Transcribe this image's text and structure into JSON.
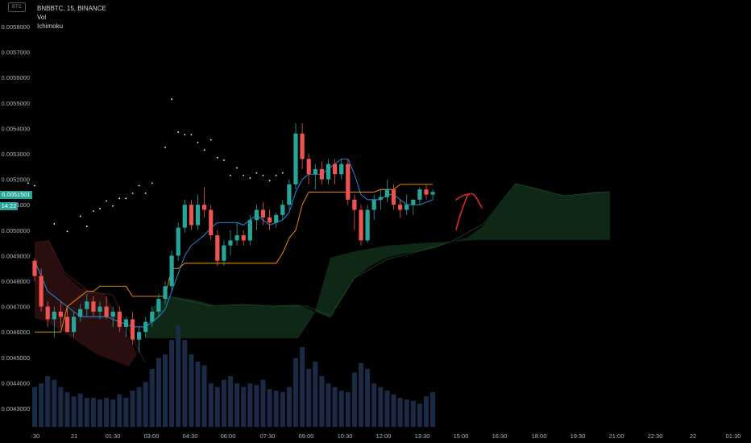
{
  "legend": {
    "symbol": "BNBBTC, 15, BINANCE",
    "vol": "Vol",
    "ichimoku": "Ichimoku"
  },
  "badge": "BTC",
  "last_price": "0.0051501",
  "countdown": "14:22",
  "colors": {
    "up": "#26a69a",
    "down": "#ef5350",
    "tenkan": "#2196f3",
    "kijun": "#ff9800",
    "chikou": "#ffffff",
    "cloud_bull": "#0f2a16",
    "cloud_bear": "#2a0f10",
    "volume": "#1b2a45",
    "annotation": "#e0262d"
  },
  "chart_data": {
    "type": "candlestick",
    "y_axis": {
      "ticks": [
        "0.0058000",
        "0.0057000",
        "0.0056000",
        "0.0055000",
        "0.0054000",
        "0.0053000",
        "0.0052000",
        "0.0051000",
        "0.0050000",
        "0.0049000",
        "0.0048000",
        "0.0047000",
        "0.0046000",
        "0.0045000",
        "0.0044000",
        "0.0043000"
      ],
      "range": [
        0.00426,
        0.00587
      ]
    },
    "x_axis": {
      "ticks": [
        ":30",
        "21",
        "01:30",
        "03:00",
        "04:30",
        "06:00",
        "07:30",
        "09:00",
        "10:30",
        "12:00",
        "13:30",
        "15:00",
        "16:30",
        "18:00",
        "19:30",
        "21:00",
        "22:30",
        "22",
        "01:30"
      ]
    },
    "candles_ohlc": [
      [
        0.00488,
        0.00489,
        0.0048,
        0.00482
      ],
      [
        0.00482,
        0.00485,
        0.00468,
        0.0047
      ],
      [
        0.0047,
        0.00472,
        0.00462,
        0.00465
      ],
      [
        0.00465,
        0.0047,
        0.00458,
        0.00468
      ],
      [
        0.00468,
        0.00472,
        0.00462,
        0.00466
      ],
      [
        0.00466,
        0.0047,
        0.00463,
        0.0046
      ],
      [
        0.0046,
        0.00468,
        0.00458,
        0.00466
      ],
      [
        0.00466,
        0.00471,
        0.00464,
        0.00469
      ],
      [
        0.00469,
        0.00475,
        0.00466,
        0.00472
      ],
      [
        0.00472,
        0.00474,
        0.00466,
        0.00468
      ],
      [
        0.00468,
        0.00472,
        0.00465,
        0.0047
      ],
      [
        0.0047,
        0.00474,
        0.00465,
        0.00466
      ],
      [
        0.00466,
        0.0047,
        0.00462,
        0.00468
      ],
      [
        0.00468,
        0.0047,
        0.0046,
        0.00462
      ],
      [
        0.00462,
        0.00466,
        0.00458,
        0.00465
      ],
      [
        0.00465,
        0.00468,
        0.00455,
        0.00457
      ],
      [
        0.00457,
        0.00462,
        0.00452,
        0.0046
      ],
      [
        0.0046,
        0.00466,
        0.00458,
        0.00464
      ],
      [
        0.00464,
        0.0047,
        0.00462,
        0.00468
      ],
      [
        0.00468,
        0.00475,
        0.00466,
        0.00473
      ],
      [
        0.00473,
        0.0048,
        0.00471,
        0.00478
      ],
      [
        0.00478,
        0.00492,
        0.00476,
        0.0049
      ],
      [
        0.0049,
        0.00503,
        0.00488,
        0.00501
      ],
      [
        0.00501,
        0.00512,
        0.00499,
        0.0051
      ],
      [
        0.0051,
        0.00512,
        0.005,
        0.00502
      ],
      [
        0.00502,
        0.00514,
        0.005,
        0.0051
      ],
      [
        0.0051,
        0.00517,
        0.00505,
        0.00508
      ],
      [
        0.00508,
        0.0051,
        0.00496,
        0.00498
      ],
      [
        0.00498,
        0.005,
        0.00486,
        0.00488
      ],
      [
        0.00488,
        0.00496,
        0.00486,
        0.00494
      ],
      [
        0.00494,
        0.005,
        0.0049,
        0.00496
      ],
      [
        0.00496,
        0.00503,
        0.00494,
        0.00498
      ],
      [
        0.00498,
        0.005,
        0.00494,
        0.00496
      ],
      [
        0.00496,
        0.00506,
        0.00494,
        0.00504
      ],
      [
        0.00504,
        0.0051,
        0.005,
        0.00508
      ],
      [
        0.00508,
        0.00511,
        0.00502,
        0.00505
      ],
      [
        0.00505,
        0.00508,
        0.005,
        0.00503
      ],
      [
        0.00503,
        0.00507,
        0.00501,
        0.00506
      ],
      [
        0.00506,
        0.00512,
        0.00504,
        0.0051
      ],
      [
        0.0051,
        0.0052,
        0.00508,
        0.00518
      ],
      [
        0.00518,
        0.00542,
        0.00516,
        0.00538
      ],
      [
        0.00538,
        0.00542,
        0.00524,
        0.00528
      ],
      [
        0.00528,
        0.0053,
        0.00518,
        0.00522
      ],
      [
        0.00522,
        0.00526,
        0.00516,
        0.00524
      ],
      [
        0.00524,
        0.00527,
        0.00518,
        0.0052
      ],
      [
        0.0052,
        0.00528,
        0.00518,
        0.00526
      ],
      [
        0.00526,
        0.00528,
        0.00518,
        0.00522
      ],
      [
        0.00522,
        0.00528,
        0.0052,
        0.00526
      ],
      [
        0.00526,
        0.00528,
        0.0051,
        0.00512
      ],
      [
        0.00512,
        0.00514,
        0.005,
        0.00508
      ],
      [
        0.00508,
        0.0051,
        0.00494,
        0.00496
      ],
      [
        0.00496,
        0.0051,
        0.00495,
        0.00508
      ],
      [
        0.00508,
        0.00514,
        0.00504,
        0.00512
      ],
      [
        0.00512,
        0.00516,
        0.00508,
        0.00513
      ],
      [
        0.00513,
        0.0052,
        0.00511,
        0.00516
      ],
      [
        0.00516,
        0.00518,
        0.00508,
        0.0051
      ],
      [
        0.0051,
        0.00512,
        0.00505,
        0.00508
      ],
      [
        0.00508,
        0.00514,
        0.00506,
        0.0051
      ],
      [
        0.0051,
        0.00512,
        0.00506,
        0.00512
      ],
      [
        0.00512,
        0.00517,
        0.0051,
        0.00516
      ],
      [
        0.00516,
        0.00518,
        0.00512,
        0.00514
      ],
      [
        0.00514,
        0.00516,
        0.00512,
        0.00515
      ]
    ],
    "volume": [
      0.0044,
      0.0044,
      0.0044,
      0.0044,
      0.0043,
      0.0043,
      0.0043,
      0.0043,
      0.0043,
      0.0043,
      0.0043,
      0.0043,
      0.0043,
      0.0044,
      0.0044,
      0.0044,
      0.0044,
      0.0044,
      0.0045,
      0.0045,
      0.0045,
      0.0045,
      0.0045,
      0.0045,
      0.0045,
      0.0044,
      0.0044,
      0.0044,
      0.0043,
      0.0043,
      0.0043,
      0.0044,
      0.0044,
      0.0043,
      0.0044,
      0.0044,
      0.0044,
      0.0044,
      0.0044,
      0.0044,
      0.0045,
      0.0046,
      0.0045,
      0.0045,
      0.0045,
      0.0044,
      0.0044,
      0.0044,
      0.0044,
      0.0045,
      0.0045,
      0.0045,
      0.0044,
      0.0044,
      0.0044,
      0.0044,
      0.0043,
      0.0043,
      0.0043,
      0.0043,
      0.0043,
      0.0044
    ],
    "tenkan": [
      0.00488,
      0.00482,
      0.00476,
      0.00474,
      0.00472,
      0.0047,
      0.00468,
      0.00466,
      0.00466,
      0.00466,
      0.00466,
      0.00466,
      0.00465,
      0.00464,
      0.00463,
      0.00462,
      0.00462,
      0.00462,
      0.00464,
      0.00466,
      0.00469,
      0.00476,
      0.00483,
      0.0049,
      0.00494,
      0.00496,
      0.00498,
      0.00501,
      0.00503,
      0.00503,
      0.00503,
      0.00503,
      0.00502,
      0.00504,
      0.00506,
      0.00504,
      0.00502,
      0.00503,
      0.00504,
      0.00507,
      0.00515,
      0.0052,
      0.00522,
      0.00522,
      0.00522,
      0.00524,
      0.00526,
      0.00528,
      0.00528,
      0.00522,
      0.00514,
      0.00512,
      0.00512,
      0.00512,
      0.00514,
      0.00514,
      0.00512,
      0.0051,
      0.0051,
      0.0051,
      0.00511,
      0.00512
    ],
    "kijun": [
      0.0046,
      0.0046,
      0.0046,
      0.0046,
      0.0046,
      0.0047,
      0.00472,
      0.00474,
      0.00476,
      0.00476,
      0.00478,
      0.00478,
      0.00478,
      0.00478,
      0.00478,
      0.00474,
      0.00474,
      0.00474,
      0.00474,
      0.00474,
      0.00474,
      0.00485,
      0.00485,
      0.00487,
      0.00487,
      0.00487,
      0.00487,
      0.00487,
      0.00487,
      0.00487,
      0.00487,
      0.00487,
      0.00487,
      0.00487,
      0.00487,
      0.00487,
      0.00487,
      0.00487,
      0.00491,
      0.00497,
      0.005,
      0.0051,
      0.00515,
      0.00515,
      0.00515,
      0.00515,
      0.00515,
      0.00515,
      0.00515,
      0.00515,
      0.00515,
      0.00515,
      0.00515,
      0.00516,
      0.00516,
      0.00516,
      0.00518,
      0.00518,
      0.00518,
      0.00518,
      0.00518,
      0.00518
    ],
    "chikou_points": [
      [
        -1,
        0.00509
      ],
      [
        0,
        0.00508
      ],
      [
        3,
        0.00493
      ],
      [
        5,
        0.0049
      ],
      [
        7,
        0.00496
      ],
      [
        8,
        0.00492
      ],
      [
        9,
        0.00498
      ],
      [
        10,
        0.00499
      ],
      [
        11,
        0.00502
      ],
      [
        12,
        0.005
      ],
      [
        13,
        0.00503
      ],
      [
        14,
        0.00503
      ],
      [
        15,
        0.00505
      ],
      [
        16,
        0.00508
      ],
      [
        17,
        0.00505
      ],
      [
        18,
        0.00509
      ],
      [
        20,
        0.00523
      ],
      [
        21,
        0.00542
      ],
      [
        22,
        0.00529
      ],
      [
        23,
        0.00528
      ],
      [
        24,
        0.00528
      ],
      [
        25,
        0.00525
      ],
      [
        26,
        0.00522
      ],
      [
        27,
        0.00526
      ],
      [
        28,
        0.00519
      ],
      [
        29,
        0.00518
      ],
      [
        30,
        0.00512
      ],
      [
        31,
        0.00515
      ],
      [
        32,
        0.00512
      ],
      [
        33,
        0.00511
      ],
      [
        34,
        0.00513
      ],
      [
        35,
        0.00512
      ],
      [
        36,
        0.0051
      ],
      [
        37,
        0.00512
      ],
      [
        38,
        0.00513
      ]
    ]
  }
}
